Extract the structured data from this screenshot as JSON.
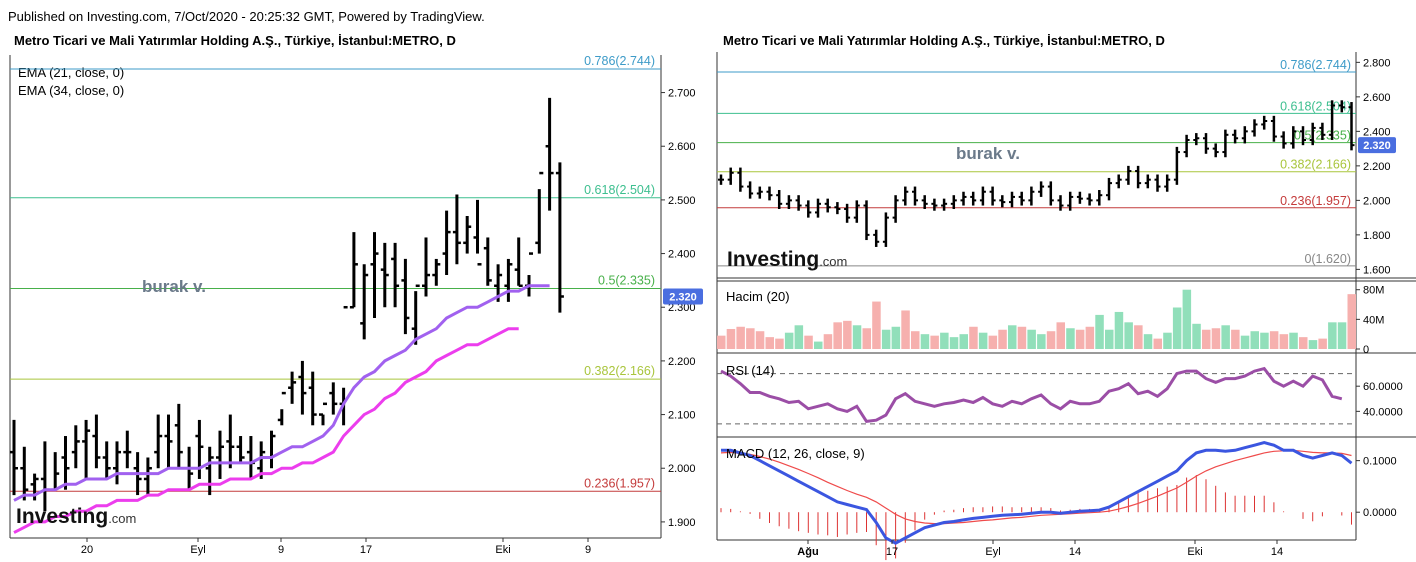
{
  "published": "Published on Investing.com, 7/Oct/2020 - 20:25:32 GMT, Powered by TradingView.",
  "colors": {
    "price_bars": "#000000",
    "ema21": "#a161ef",
    "ema34": "#ec3ded",
    "fib_0786": "#3d9bc8",
    "fib_0618": "#3dbf8f",
    "fib_05": "#48b04a",
    "fib_0382": "#a9c53c",
    "fib_0236": "#c43b3b",
    "fib_0": "#888888",
    "volume_up": "#91dfba",
    "volume_down": "#f6b0ae",
    "rsi": "#9b4ea6",
    "macd": "#3b56e0",
    "signal": "#ef4b4b",
    "price_tag": "#4a6ee0"
  },
  "left_chart": {
    "title": "Metro Ticari ve Mali Yatırımlar Holding A.Ş., Türkiye, İstanbul:METRO, D",
    "legend": [
      "EMA (21, close, 0)",
      "EMA (34, close, 0)"
    ],
    "watermark": "burak v.",
    "logo_main": "Investing",
    "logo_suffix": ".com",
    "last_price": "2.320",
    "y_ticks": [
      "2.700",
      "2.600",
      "2.500",
      "2.400",
      "2.300",
      "2.200",
      "2.100",
      "2.000",
      "1.900"
    ],
    "x_ticks": [
      "20",
      "Eyl",
      "9",
      "17",
      "Eki",
      "9"
    ]
  },
  "right_chart": {
    "title": "Metro Ticari ve Mali Yatırımlar Holding A.Ş., Türkiye, İstanbul:METRO, D",
    "watermark": "burak v.",
    "logo_main": "Investing",
    "logo_suffix": ".com",
    "last_price": "2.320",
    "y_ticks": [
      "2.800",
      "2.600",
      "2.400",
      "2.200",
      "2.000",
      "1.800",
      "1.600"
    ],
    "x_ticks": [
      "Ağu",
      "17",
      "Eyl",
      "14",
      "Eki",
      "14"
    ],
    "volume_label": "Hacim (20)",
    "volume_ticks": [
      "80M",
      "40M",
      "0"
    ],
    "rsi_label": "RSI (14)",
    "rsi_ticks": [
      "60.0000",
      "40.0000"
    ],
    "macd_label": "MACD (12, 26, close, 9)",
    "macd_ticks": [
      "0.1000",
      "0.0000"
    ]
  },
  "chart_data": [
    {
      "type": "line",
      "title": "Metro Ticari ve Mali Yatırımlar Holding A.Ş., Türkiye, İstanbul:METRO, D",
      "ylim": [
        1.87,
        2.77
      ],
      "ohlc_high": [
        2.09,
        2.04,
        1.99,
        2.05,
        2.03,
        2.06,
        2.08,
        2.09,
        2.1,
        2.05,
        2.05,
        2.07,
        2.03,
        2.02,
        2.1,
        2.1,
        2.12,
        2.04,
        2.09,
        2.04,
        2.07,
        2.1,
        2.06,
        2.06,
        2.05,
        2.07,
        2.11,
        2.18,
        2.2,
        2.18,
        2.1,
        2.16,
        2.15,
        2.44,
        2.38,
        2.44,
        2.42,
        2.42,
        2.39,
        2.33,
        2.43,
        2.39,
        2.48,
        2.51,
        2.47,
        2.5,
        2.43,
        2.38,
        2.39,
        2.43,
        2.36,
        2.52,
        2.69,
        2.57
      ],
      "ohlc_low": [
        1.95,
        1.94,
        1.94,
        1.92,
        1.96,
        1.96,
        2.0,
        1.98,
        2.0,
        1.98,
        1.97,
        2.0,
        1.95,
        1.95,
        2.0,
        2.0,
        2.0,
        1.96,
        1.98,
        1.95,
        1.98,
        2.0,
        2.01,
        1.98,
        1.98,
        2.0,
        2.08,
        2.12,
        2.1,
        2.08,
        2.08,
        2.1,
        2.08,
        2.3,
        2.24,
        2.28,
        2.3,
        2.3,
        2.25,
        2.23,
        2.32,
        2.34,
        2.36,
        2.38,
        2.4,
        2.4,
        2.34,
        2.31,
        2.31,
        2.34,
        2.32,
        2.4,
        2.48,
        2.29
      ],
      "ohlc_open": [
        2.03,
        2.0,
        1.97,
        1.98,
        1.96,
        2.02,
        2.03,
        2.05,
        2.06,
        2.02,
        2.0,
        2.03,
        2.0,
        1.98,
        2.03,
        2.06,
        2.08,
        2.0,
        2.06,
        2.0,
        2.02,
        2.05,
        2.04,
        2.03,
        2.0,
        2.02,
        2.09,
        2.15,
        2.17,
        2.15,
        2.1,
        2.14,
        2.12,
        2.3,
        2.27,
        2.38,
        2.37,
        2.39,
        2.35,
        2.26,
        2.34,
        2.36,
        2.4,
        2.44,
        2.42,
        2.43,
        2.41,
        2.34,
        2.34,
        2.37,
        2.34,
        2.42,
        2.6,
        2.55
      ],
      "ohlc_close": [
        2.0,
        1.96,
        1.98,
        1.96,
        1.99,
        2.0,
        2.05,
        2.07,
        2.02,
        2.0,
        2.03,
        2.03,
        1.98,
        2.0,
        2.06,
        2.05,
        2.03,
        1.99,
        2.04,
        2.02,
        2.04,
        2.04,
        2.02,
        2.01,
        2.03,
        2.06,
        2.14,
        2.16,
        2.14,
        2.1,
        2.12,
        2.12,
        2.3,
        2.38,
        2.36,
        2.4,
        2.36,
        2.34,
        2.28,
        2.34,
        2.36,
        2.38,
        2.44,
        2.42,
        2.45,
        2.38,
        2.35,
        2.36,
        2.38,
        2.34,
        2.4,
        2.55,
        2.55,
        2.32
      ],
      "ema21": [
        1.94,
        1.95,
        1.95,
        1.96,
        1.96,
        1.97,
        1.97,
        1.98,
        1.98,
        1.98,
        1.99,
        1.99,
        1.99,
        1.99,
        1.99,
        2.0,
        2.0,
        2.0,
        2.0,
        2.01,
        2.01,
        2.01,
        2.01,
        2.01,
        2.02,
        2.02,
        2.03,
        2.04,
        2.04,
        2.05,
        2.06,
        2.08,
        2.12,
        2.15,
        2.17,
        2.18,
        2.2,
        2.21,
        2.22,
        2.24,
        2.25,
        2.26,
        2.28,
        2.29,
        2.3,
        2.3,
        2.31,
        2.32,
        2.33,
        2.33,
        2.34,
        2.34,
        2.34
      ],
      "ema34": [
        1.88,
        1.89,
        1.9,
        1.9,
        1.91,
        1.91,
        1.92,
        1.92,
        1.93,
        1.93,
        1.94,
        1.94,
        1.94,
        1.95,
        1.95,
        1.96,
        1.96,
        1.96,
        1.97,
        1.97,
        1.97,
        1.98,
        1.98,
        1.98,
        1.99,
        1.99,
        2.0,
        2.0,
        2.01,
        2.01,
        2.02,
        2.03,
        2.06,
        2.08,
        2.1,
        2.11,
        2.13,
        2.14,
        2.16,
        2.17,
        2.18,
        2.2,
        2.21,
        2.22,
        2.23,
        2.23,
        2.24,
        2.25,
        2.26,
        2.26
      ],
      "fibonacci": [
        {
          "level": "0.786",
          "value": 2.744
        },
        {
          "level": "0.618",
          "value": 2.504
        },
        {
          "level": "0.5",
          "value": 2.335
        },
        {
          "level": "0.382",
          "value": 2.166
        },
        {
          "level": "0.236",
          "value": 1.957
        }
      ]
    },
    {
      "type": "line",
      "title": "Metro Ticari ve Mali Yatırımlar Holding A.Ş., Türkiye, İstanbul:METRO, D",
      "ylim": [
        1.55,
        2.86
      ],
      "close": [
        2.12,
        2.16,
        2.08,
        2.04,
        2.05,
        2.03,
        1.98,
        2.0,
        1.97,
        1.93,
        1.98,
        1.96,
        1.95,
        1.9,
        1.97,
        1.8,
        1.76,
        1.9,
        2.0,
        2.05,
        2.0,
        1.98,
        1.97,
        1.98,
        2.0,
        2.02,
        2.0,
        2.05,
        2.0,
        1.99,
        2.02,
        2.0,
        2.05,
        2.08,
        2.0,
        1.97,
        2.02,
        2.01,
        2.0,
        2.03,
        2.1,
        2.12,
        2.17,
        2.1,
        2.12,
        2.08,
        2.12,
        2.28,
        2.35,
        2.36,
        2.3,
        2.28,
        2.38,
        2.36,
        2.4,
        2.44,
        2.46,
        2.37,
        2.33,
        2.4,
        2.35,
        2.42,
        2.38,
        2.55,
        2.54,
        2.32
      ],
      "fibonacci": [
        {
          "level": "0.786",
          "value": 2.744
        },
        {
          "level": "0.618",
          "value": 2.504
        },
        {
          "level": "0.5",
          "value": 2.335
        },
        {
          "level": "0.382",
          "value": 2.166
        },
        {
          "level": "0.236",
          "value": 1.957
        },
        {
          "level": "0",
          "value": 1.62
        }
      ],
      "volume_millions": [
        18,
        27,
        30,
        28,
        24,
        16,
        14,
        22,
        32,
        18,
        10,
        20,
        36,
        38,
        32,
        28,
        64,
        26,
        30,
        52,
        24,
        20,
        18,
        22,
        16,
        20,
        30,
        22,
        18,
        26,
        32,
        30,
        26,
        20,
        24,
        36,
        28,
        26,
        30,
        46,
        26,
        50,
        36,
        32,
        20,
        14,
        22,
        56,
        80,
        34,
        26,
        28,
        32,
        26,
        18,
        24,
        22,
        24,
        20,
        22,
        16,
        12,
        14,
        36,
        36,
        74
      ],
      "volume_up": [
        false,
        false,
        false,
        false,
        false,
        false,
        false,
        true,
        true,
        false,
        true,
        false,
        false,
        false,
        true,
        false,
        false,
        true,
        true,
        false,
        false,
        true,
        false,
        true,
        true,
        true,
        false,
        true,
        false,
        false,
        true,
        false,
        true,
        true,
        false,
        false,
        true,
        false,
        false,
        true,
        true,
        true,
        true,
        false,
        true,
        false,
        true,
        true,
        true,
        true,
        false,
        false,
        true,
        false,
        true,
        true,
        true,
        false,
        false,
        true,
        false,
        true,
        false,
        true,
        true,
        false
      ],
      "rsi": [
        72,
        68,
        62,
        55,
        55,
        52,
        50,
        47,
        48,
        42,
        44,
        46,
        42,
        40,
        44,
        32,
        33,
        37,
        50,
        54,
        48,
        46,
        44,
        46,
        47,
        49,
        47,
        51,
        46,
        44,
        48,
        46,
        50,
        53,
        46,
        42,
        48,
        46,
        46,
        48,
        56,
        58,
        62,
        54,
        56,
        52,
        58,
        70,
        72,
        72,
        66,
        63,
        66,
        66,
        68,
        72,
        74,
        64,
        60,
        64,
        60,
        68,
        65,
        52,
        50
      ],
      "macd": [
        0.12,
        0.12,
        0.115,
        0.11,
        0.1,
        0.09,
        0.08,
        0.07,
        0.06,
        0.05,
        0.04,
        0.03,
        0.02,
        0.015,
        0.01,
        0.005,
        -0.02,
        -0.05,
        -0.06,
        -0.05,
        -0.04,
        -0.03,
        -0.025,
        -0.02,
        -0.018,
        -0.015,
        -0.012,
        -0.01,
        -0.008,
        -0.006,
        -0.005,
        -0.004,
        -0.002,
        0.0,
        0.0,
        -0.002,
        0.0,
        0.002,
        0.003,
        0.004,
        0.01,
        0.02,
        0.03,
        0.04,
        0.05,
        0.06,
        0.07,
        0.08,
        0.1,
        0.115,
        0.12,
        0.12,
        0.118,
        0.12,
        0.125,
        0.13,
        0.135,
        0.13,
        0.12,
        0.12,
        0.11,
        0.105,
        0.11,
        0.115,
        0.11,
        0.095
      ],
      "signal": [
        0.115,
        0.116,
        0.114,
        0.112,
        0.108,
        0.103,
        0.097,
        0.09,
        0.083,
        0.075,
        0.067,
        0.058,
        0.05,
        0.042,
        0.035,
        0.029,
        0.02,
        0.008,
        -0.004,
        -0.013,
        -0.018,
        -0.021,
        -0.022,
        -0.022,
        -0.021,
        -0.02,
        -0.018,
        -0.016,
        -0.015,
        -0.013,
        -0.011,
        -0.01,
        -0.008,
        -0.006,
        -0.005,
        -0.004,
        -0.003,
        -0.002,
        -0.001,
        0.0,
        0.002,
        0.006,
        0.011,
        0.017,
        0.024,
        0.031,
        0.039,
        0.047,
        0.058,
        0.07,
        0.08,
        0.088,
        0.094,
        0.1,
        0.105,
        0.11,
        0.115,
        0.118,
        0.119,
        0.12,
        0.118,
        0.116,
        0.115,
        0.115,
        0.114,
        0.11
      ]
    }
  ]
}
